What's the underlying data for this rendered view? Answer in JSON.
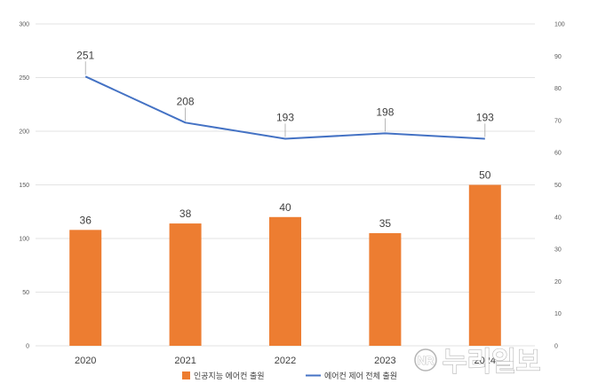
{
  "chart_data": {
    "type": "bar",
    "categories": [
      "2020",
      "2021",
      "2022",
      "2023",
      "2024"
    ],
    "series": [
      {
        "name": "인공지능 에어컨 출원",
        "type": "bar",
        "axis": "right",
        "color": "#ED7D31",
        "values": [
          36,
          38,
          40,
          35,
          50
        ]
      },
      {
        "name": "에어컨 제어 전체 출원",
        "type": "line",
        "axis": "left",
        "color": "#4472C4",
        "values": [
          251,
          208,
          193,
          198,
          193
        ]
      }
    ],
    "left_axis": {
      "ylim": [
        0,
        300
      ],
      "ticks": [
        "0",
        "50",
        "100",
        "150",
        "200",
        "250",
        "300"
      ]
    },
    "right_axis": {
      "ylim": [
        0,
        100
      ],
      "ticks": [
        "0",
        "10",
        "20",
        "30",
        "40",
        "50",
        "60",
        "70",
        "80",
        "90",
        "100"
      ]
    },
    "grid": true,
    "legend": "bottom"
  },
  "watermark": {
    "badge": "NR",
    "text": "누리일보"
  }
}
